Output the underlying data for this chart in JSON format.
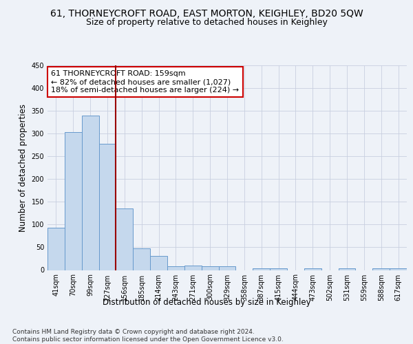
{
  "title_line1": "61, THORNEYCROFT ROAD, EAST MORTON, KEIGHLEY, BD20 5QW",
  "title_line2": "Size of property relative to detached houses in Keighley",
  "xlabel": "Distribution of detached houses by size in Keighley",
  "ylabel": "Number of detached properties",
  "categories": [
    "41sqm",
    "70sqm",
    "99sqm",
    "127sqm",
    "156sqm",
    "185sqm",
    "214sqm",
    "243sqm",
    "271sqm",
    "300sqm",
    "329sqm",
    "358sqm",
    "387sqm",
    "415sqm",
    "444sqm",
    "473sqm",
    "502sqm",
    "531sqm",
    "559sqm",
    "588sqm",
    "617sqm"
  ],
  "values": [
    93,
    303,
    340,
    278,
    135,
    47,
    31,
    9,
    10,
    8,
    8,
    0,
    4,
    4,
    0,
    4,
    0,
    4,
    0,
    4,
    4
  ],
  "bar_color": "#c5d8ed",
  "bar_edge_color": "#6699cc",
  "vline_x_index": 4,
  "vline_color": "#990000",
  "annotation_line1": "61 THORNEYCROFT ROAD: 159sqm",
  "annotation_line2": "← 82% of detached houses are smaller (1,027)",
  "annotation_line3": "18% of semi-detached houses are larger (224) →",
  "annotation_box_color": "white",
  "annotation_box_edge_color": "#cc0000",
  "ylim": [
    0,
    450
  ],
  "yticks": [
    0,
    50,
    100,
    150,
    200,
    250,
    300,
    350,
    400,
    450
  ],
  "footnote": "Contains HM Land Registry data © Crown copyright and database right 2024.\nContains public sector information licensed under the Open Government Licence v3.0.",
  "bg_color": "#eef2f8",
  "plot_bg_color": "#eef2f8",
  "grid_color": "#c8cfe0",
  "title_fontsize": 10,
  "subtitle_fontsize": 9,
  "axis_label_fontsize": 8.5,
  "tick_fontsize": 7,
  "annotation_fontsize": 8,
  "footnote_fontsize": 6.5
}
